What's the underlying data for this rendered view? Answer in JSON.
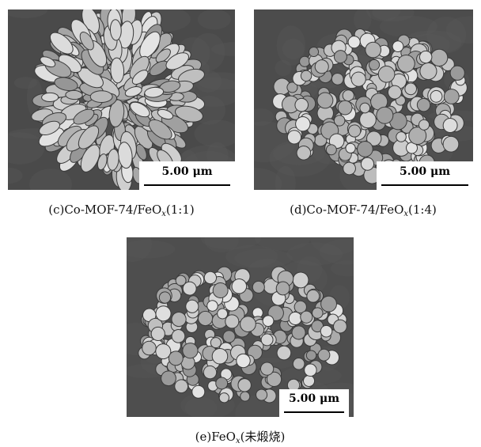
{
  "panels": [
    {
      "scale": "5.00 μm",
      "caption": [
        "(c)Co-MOF-74/FeO",
        "x",
        "(1:1)"
      ]
    },
    {
      "scale": "5.00 μm",
      "caption": [
        "(d)Co-MOF-74/FeO",
        "x",
        "(1:4)"
      ]
    },
    {
      "scale": "5.00 μm",
      "caption": [
        "(e)FeO",
        "x",
        "(未煅烧)"
      ]
    }
  ]
}
